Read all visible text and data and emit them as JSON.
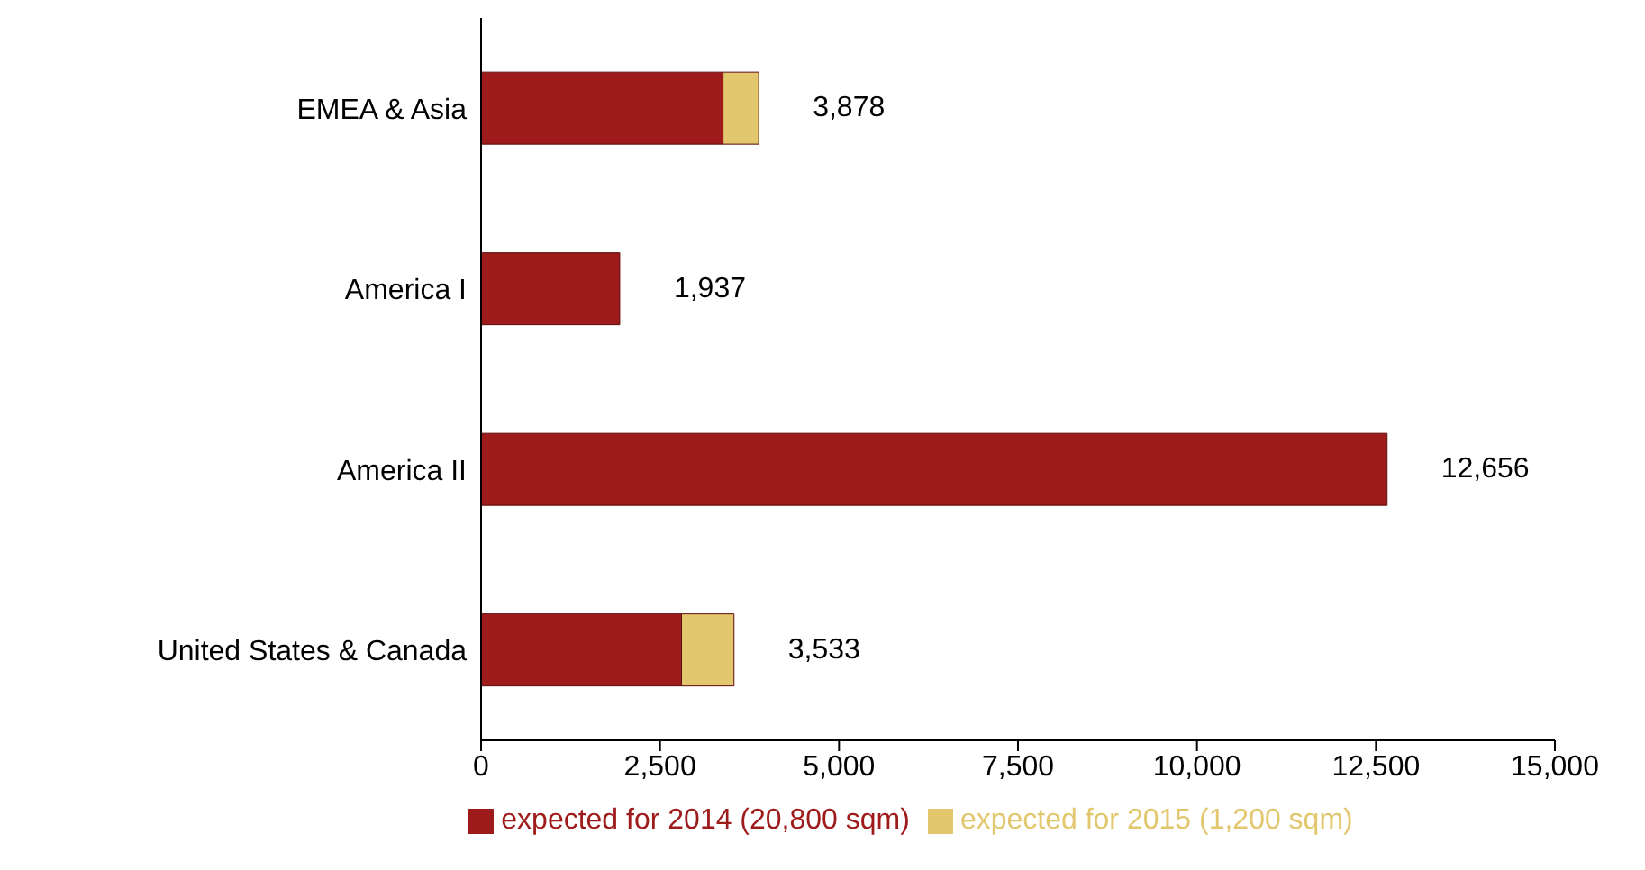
{
  "chart_data": {
    "type": "bar",
    "orientation": "horizontal",
    "stacked": true,
    "categories": [
      "EMEA & Asia",
      "America I",
      "America II",
      "United States & Canada"
    ],
    "series": [
      {
        "name": "expected for 2014 (20,800 sqm)",
        "color": "#9e1b1b",
        "values": [
          3380,
          1937,
          12656,
          2800
        ]
      },
      {
        "name": "expected for 2015 (1,200 sqm)",
        "color": "#e2c76e",
        "values": [
          498,
          0,
          0,
          733
        ]
      }
    ],
    "totals": [
      "3,878",
      "1,937",
      "12,656",
      "3,533"
    ],
    "xlim": [
      0,
      15000
    ],
    "xticks": [
      0,
      {
        "value": 2500,
        "label": "2,500"
      },
      {
        "value": 5000,
        "label": "5,000"
      },
      {
        "value": 7500,
        "label": "7,500"
      },
      {
        "value": 10000,
        "label": "10,000"
      },
      {
        "value": 12500,
        "label": "12,500"
      },
      {
        "value": 15000,
        "label": "15,000"
      }
    ],
    "grid": false,
    "legend": "bottom"
  }
}
